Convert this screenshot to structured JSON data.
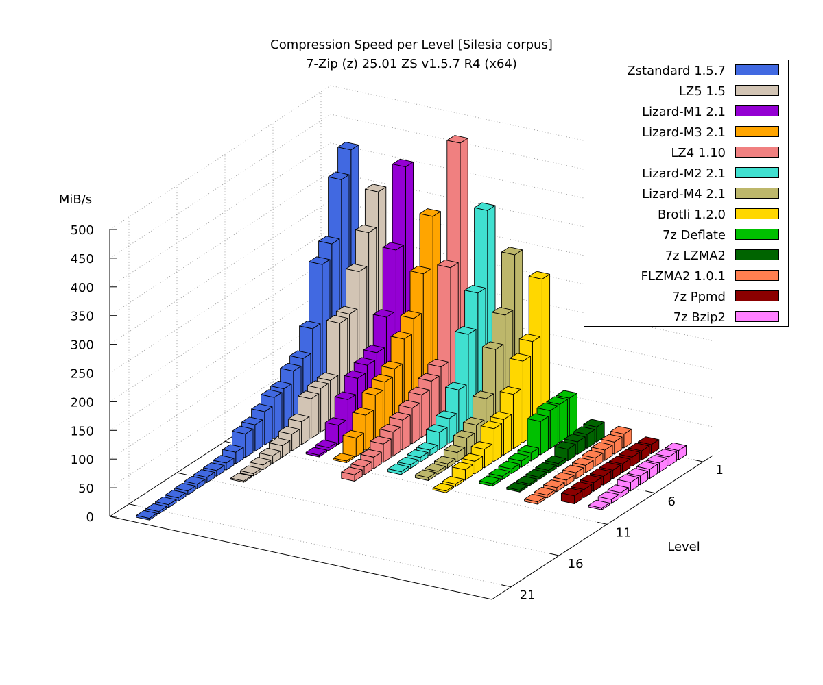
{
  "chart_data": {
    "type": "bar3d",
    "title": "Compression Speed per Level [Silesia corpus]",
    "subtitle": "7-Zip (z) 25.01 ZS v1.5.7 R4 (x64)",
    "zlabel": "MiB/s",
    "level_label": "Level",
    "zlim": [
      0,
      500
    ],
    "z_ticks": [
      "0",
      "50",
      "100",
      "150",
      "200",
      "250",
      "300",
      "350",
      "400",
      "450",
      "500"
    ],
    "level_ticks": [
      "1",
      "6",
      "11",
      "16",
      "21"
    ],
    "grid": true,
    "legend": "top-right",
    "series": [
      {
        "name": "Zstandard 1.5.7",
        "color": "#4169e1",
        "values": [
          416,
          375,
          274,
          249,
          148,
          107,
          96,
          76,
          72,
          58,
          46,
          41,
          20,
          12,
          10,
          9,
          8,
          7,
          6,
          5,
          4,
          3
        ]
      },
      {
        "name": "LZ5 1.5",
        "color": "#d2c4b4",
        "values": [
          353,
          293,
          236,
          173,
          168,
          79,
          76,
          69,
          40,
          29,
          20,
          13,
          8,
          4,
          2
        ]
      },
      {
        "name": "Lizard-M1 2.1",
        "color": "#9400d3",
        "values": [
          407,
          273,
          167,
          116,
          105,
          93,
          67,
          33,
          5,
          3
        ]
      },
      {
        "name": "Lizard-M3 2.1",
        "color": "#ffa500",
        "values": [
          331,
          242,
          175,
          150,
          109,
          97,
          85,
          61,
          32,
          3
        ]
      },
      {
        "name": "LZ4 1.10",
        "color": "#f08080",
        "values": [
          469,
          263,
          101,
          87,
          74,
          62,
          52,
          42,
          32,
          20,
          14,
          11
        ]
      },
      {
        "name": "Lizard-M2 2.1",
        "color": "#40e0d0",
        "values": [
          362,
          229,
          168,
          82,
          43,
          30,
          10,
          8,
          6,
          5
        ]
      },
      {
        "name": "Lizard-M4 2.1",
        "color": "#bdb76b",
        "values": [
          295,
          201,
          152,
          77,
          42,
          30,
          16,
          7,
          5,
          5
        ]
      },
      {
        "name": "Brotli 1.2.0",
        "color": "#ffd700",
        "values": [
          263,
          165,
          142,
          95,
          62,
          57,
          32,
          22,
          18,
          4,
          3
        ]
      },
      {
        "name": "7z Deflate",
        "color": "#00c000",
        "values": [
          66,
          66,
          66,
          58,
          14,
          11,
          8,
          6,
          4
        ]
      },
      {
        "name": "7z LZMA2",
        "color": "#006400",
        "values": [
          26,
          24,
          22,
          20,
          6,
          5,
          4,
          3,
          3
        ]
      },
      {
        "name": "FLZMA2 1.0.1",
        "color": "#ff7f50",
        "values": [
          24,
          21,
          18,
          15,
          13,
          11,
          9,
          7,
          5,
          4
        ]
      },
      {
        "name": "7z Ppmd",
        "color": "#8b0000",
        "values": [
          16,
          16,
          16,
          15,
          15,
          15,
          15,
          14,
          14
        ]
      },
      {
        "name": "7z Bzip2",
        "color": "#ff80ff",
        "values": [
          16,
          16,
          16,
          16,
          15,
          15,
          8,
          7,
          3
        ]
      }
    ]
  }
}
